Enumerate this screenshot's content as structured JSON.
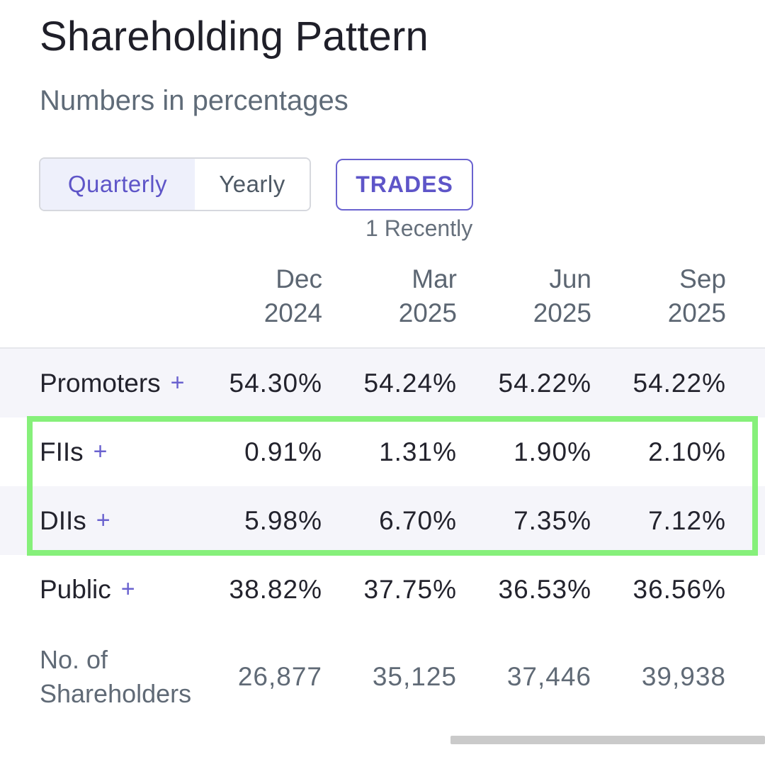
{
  "header": {
    "title": "Shareholding Pattern",
    "subtitle": "Numbers in percentages"
  },
  "controls": {
    "period_toggle": {
      "options": [
        "Quarterly",
        "Yearly"
      ],
      "selected": "Quarterly"
    },
    "trades_button": "TRADES",
    "trades_note": "1 Recently"
  },
  "table": {
    "columns": [
      {
        "month": "Dec",
        "year": "2024"
      },
      {
        "month": "Mar",
        "year": "2025"
      },
      {
        "month": "Jun",
        "year": "2025"
      },
      {
        "month": "Sep",
        "year": "2025"
      }
    ],
    "rows": [
      {
        "label": "Promoters",
        "expandable": true,
        "values": [
          "54.30%",
          "54.24%",
          "54.22%",
          "54.22%"
        ]
      },
      {
        "label": "FIIs",
        "expandable": true,
        "values": [
          "0.91%",
          "1.31%",
          "1.90%",
          "2.10%"
        ]
      },
      {
        "label": "DIIs",
        "expandable": true,
        "values": [
          "5.98%",
          "6.70%",
          "7.35%",
          "7.12%"
        ]
      },
      {
        "label": "Public",
        "expandable": true,
        "values": [
          "38.82%",
          "37.75%",
          "36.53%",
          "36.56%"
        ]
      },
      {
        "label_line1": "No. of",
        "label_line2": "Shareholders",
        "expandable": false,
        "values": [
          "26,877",
          "35,125",
          "37,446",
          "39,938"
        ]
      }
    ],
    "expand_symbol": "+"
  },
  "colors": {
    "accent": "#5e55c8",
    "highlight_border": "#86f07a",
    "row_shade": "#f5f5fa"
  },
  "icons": {
    "expand": "plus-icon"
  }
}
